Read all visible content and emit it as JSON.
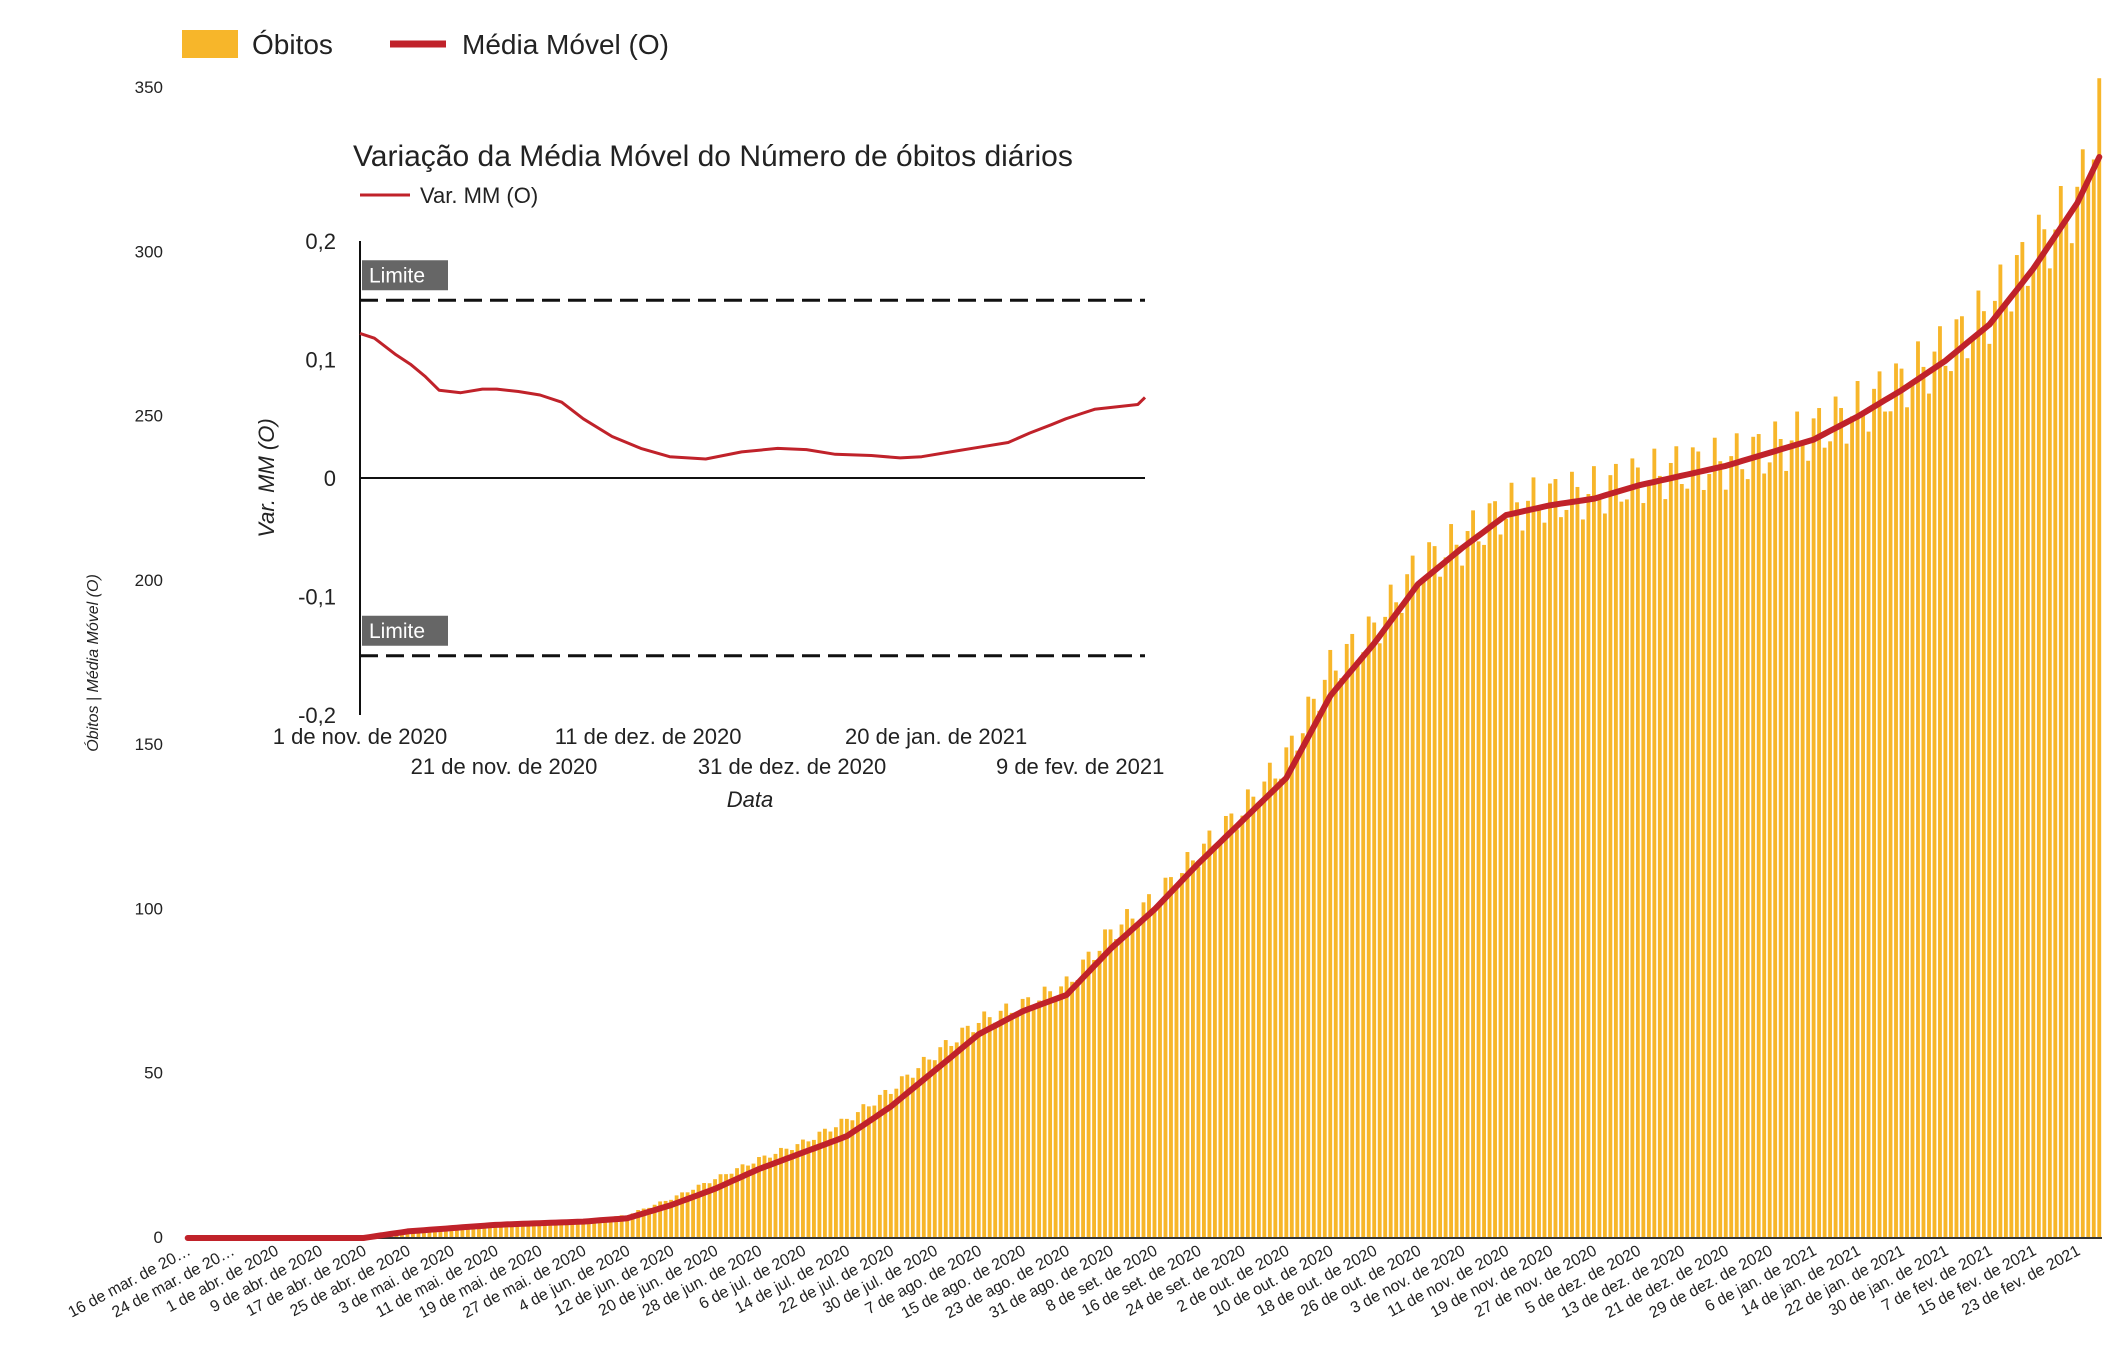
{
  "colors": {
    "bars": "#f7b62a",
    "line": "#c0222a",
    "inset_line": "#c0222a",
    "limit_line": "#111111",
    "limit_badge": "#666666",
    "axis_text": "#222222"
  },
  "chart_data": [
    {
      "type": "bar+line",
      "legend": [
        "Óbitos",
        "Média Móvel (O)"
      ],
      "legend_placement": "top-left",
      "ylabel": "Óbitos | Média Móvel (O)",
      "ylim": [
        0,
        350
      ],
      "yticks": [
        "0",
        "50",
        "100",
        "150",
        "200",
        "250",
        "300",
        "350"
      ],
      "x_start_date": "2020-03-16",
      "x_end_date": "2021-02-27",
      "xtick_labels": [
        "16 de mar. de 20…",
        "24 de mar. de 20…",
        "1 de abr. de 2020",
        "9 de abr. de 2020",
        "17 de abr. de 2020",
        "25 de abr. de 2020",
        "3 de mai. de 2020",
        "11 de mai. de 2020",
        "19 de mai. de 2020",
        "27 de mai. de 2020",
        "4 de jun. de 2020",
        "12 de jun. de 2020",
        "20 de jun. de 2020",
        "28 de jun. de 2020",
        "6 de jul. de 2020",
        "14 de jul. de 2020",
        "22 de jul. de 2020",
        "30 de jul. de 2020",
        "7 de ago. de 2020",
        "15 de ago. de 2020",
        "23 de ago. de 2020",
        "31 de ago. de 2020",
        "8 de set. de 2020",
        "16 de set. de 2020",
        "24 de set. de 2020",
        "2 de out. de 2020",
        "10 de out. de 2020",
        "18 de out. de 2020",
        "26 de out. de 2020",
        "3 de nov. de 2020",
        "11 de nov. de 2020",
        "19 de nov. de 2020",
        "27 de nov. de 2020",
        "5 de dez. de 2020",
        "13 de dez. de 2020",
        "21 de dez. de 2020",
        "29 de dez. de 2020",
        "6 de jan. de 2021",
        "14 de jan. de 2021",
        "22 de jan. de 2021",
        "30 de jan. de 2021",
        "7 de fev. de 2021",
        "15 de fev. de 2021",
        "23 de fev. de 2021"
      ],
      "series": [
        {
          "name": "Óbitos",
          "kind": "bar",
          "values_anchor_dates": [
            "2020-03-16",
            "2020-04-17",
            "2020-04-25",
            "2020-05-03",
            "2020-05-11",
            "2020-05-19",
            "2020-05-27",
            "2020-06-04",
            "2020-06-12",
            "2020-06-20",
            "2020-06-28",
            "2020-07-06",
            "2020-07-14",
            "2020-07-22",
            "2020-07-30",
            "2020-08-07",
            "2020-08-15",
            "2020-08-23",
            "2020-08-31",
            "2020-09-08",
            "2020-09-16",
            "2020-09-24",
            "2020-10-02",
            "2020-10-10",
            "2020-10-18",
            "2020-10-26",
            "2020-11-03",
            "2020-11-11",
            "2020-11-19",
            "2020-11-27",
            "2020-12-05",
            "2020-12-13",
            "2020-12-21",
            "2020-12-29",
            "2021-01-06",
            "2021-01-14",
            "2021-01-22",
            "2021-01-30",
            "2021-02-07",
            "2021-02-15",
            "2021-02-23",
            "2021-02-27"
          ],
          "values": [
            0,
            0,
            2,
            3,
            4,
            5,
            5,
            7,
            12,
            18,
            24,
            29,
            36,
            45,
            56,
            66,
            71,
            77,
            93,
            103,
            117,
            130,
            146,
            173,
            185,
            204,
            212,
            222,
            225,
            227,
            231,
            234,
            236,
            240,
            245,
            252,
            260,
            270,
            282,
            300,
            315,
            343
          ]
        },
        {
          "name": "Média Móvel (O)",
          "kind": "line",
          "values_anchor_dates": [
            "2020-03-16",
            "2020-04-17",
            "2020-04-25",
            "2020-05-03",
            "2020-05-11",
            "2020-05-19",
            "2020-05-27",
            "2020-06-04",
            "2020-06-12",
            "2020-06-20",
            "2020-06-28",
            "2020-07-06",
            "2020-07-14",
            "2020-07-22",
            "2020-07-30",
            "2020-08-07",
            "2020-08-15",
            "2020-08-23",
            "2020-08-31",
            "2020-09-08",
            "2020-09-16",
            "2020-09-24",
            "2020-10-02",
            "2020-10-10",
            "2020-10-18",
            "2020-10-26",
            "2020-11-03",
            "2020-11-11",
            "2020-11-19",
            "2020-11-27",
            "2020-12-05",
            "2020-12-13",
            "2020-12-21",
            "2020-12-29",
            "2021-01-06",
            "2021-01-14",
            "2021-01-22",
            "2021-01-30",
            "2021-02-07",
            "2021-02-15",
            "2021-02-23",
            "2021-02-27"
          ],
          "values": [
            0,
            0,
            2,
            3,
            4,
            4.5,
            5,
            6,
            10,
            15,
            21,
            26,
            31,
            40,
            51,
            62,
            69,
            74,
            88,
            100,
            114,
            127,
            140,
            165,
            181,
            199,
            210,
            220,
            223,
            225,
            229,
            232,
            235,
            239,
            243,
            250,
            258,
            267,
            278,
            295,
            315,
            329
          ]
        }
      ]
    },
    {
      "type": "line",
      "title": "Variação da Média Móvel do Número de óbitos diários",
      "legend": [
        "Var. MM (O)"
      ],
      "legend_placement": "top-left",
      "xlabel": "Data",
      "ylabel": "Var. MM (O)",
      "ylim": [
        -0.2,
        0.2
      ],
      "yticks": [
        "0,2",
        "0,1",
        "0",
        "-0,1",
        "-0,2"
      ],
      "x_start_date": "2020-11-01",
      "x_end_date": "2021-02-18",
      "xtick_labels": [
        "1 de nov. de 2020",
        "21 de nov. de 2020",
        "11 de dez. de 2020",
        "31 de dez. de 2020",
        "20 de jan. de 2021",
        "9 de fev. de 2021"
      ],
      "limit_label": "Limite",
      "limits": [
        0.15,
        -0.15
      ],
      "series": [
        {
          "name": "Var. MM (O)",
          "x": [
            "2020-11-01",
            "2020-11-03",
            "2020-11-06",
            "2020-11-08",
            "2020-11-10",
            "2020-11-12",
            "2020-11-15",
            "2020-11-18",
            "2020-11-20",
            "2020-11-23",
            "2020-11-26",
            "2020-11-29",
            "2020-12-02",
            "2020-12-06",
            "2020-12-10",
            "2020-12-14",
            "2020-12-19",
            "2020-12-24",
            "2020-12-29",
            "2021-01-02",
            "2021-01-06",
            "2021-01-11",
            "2021-01-15",
            "2021-01-18",
            "2021-01-22",
            "2021-01-26",
            "2021-01-30",
            "2021-02-02",
            "2021-02-05",
            "2021-02-07",
            "2021-02-09",
            "2021-02-11",
            "2021-02-14",
            "2021-02-17",
            "2021-02-18"
          ],
          "y": [
            0.122,
            0.118,
            0.104,
            0.096,
            0.086,
            0.074,
            0.072,
            0.075,
            0.075,
            0.073,
            0.07,
            0.064,
            0.05,
            0.035,
            0.025,
            0.018,
            0.016,
            0.022,
            0.025,
            0.024,
            0.02,
            0.019,
            0.017,
            0.018,
            0.022,
            0.026,
            0.03,
            0.038,
            0.045,
            0.05,
            0.054,
            0.058,
            0.06,
            0.062,
            0.068
          ]
        }
      ]
    }
  ]
}
